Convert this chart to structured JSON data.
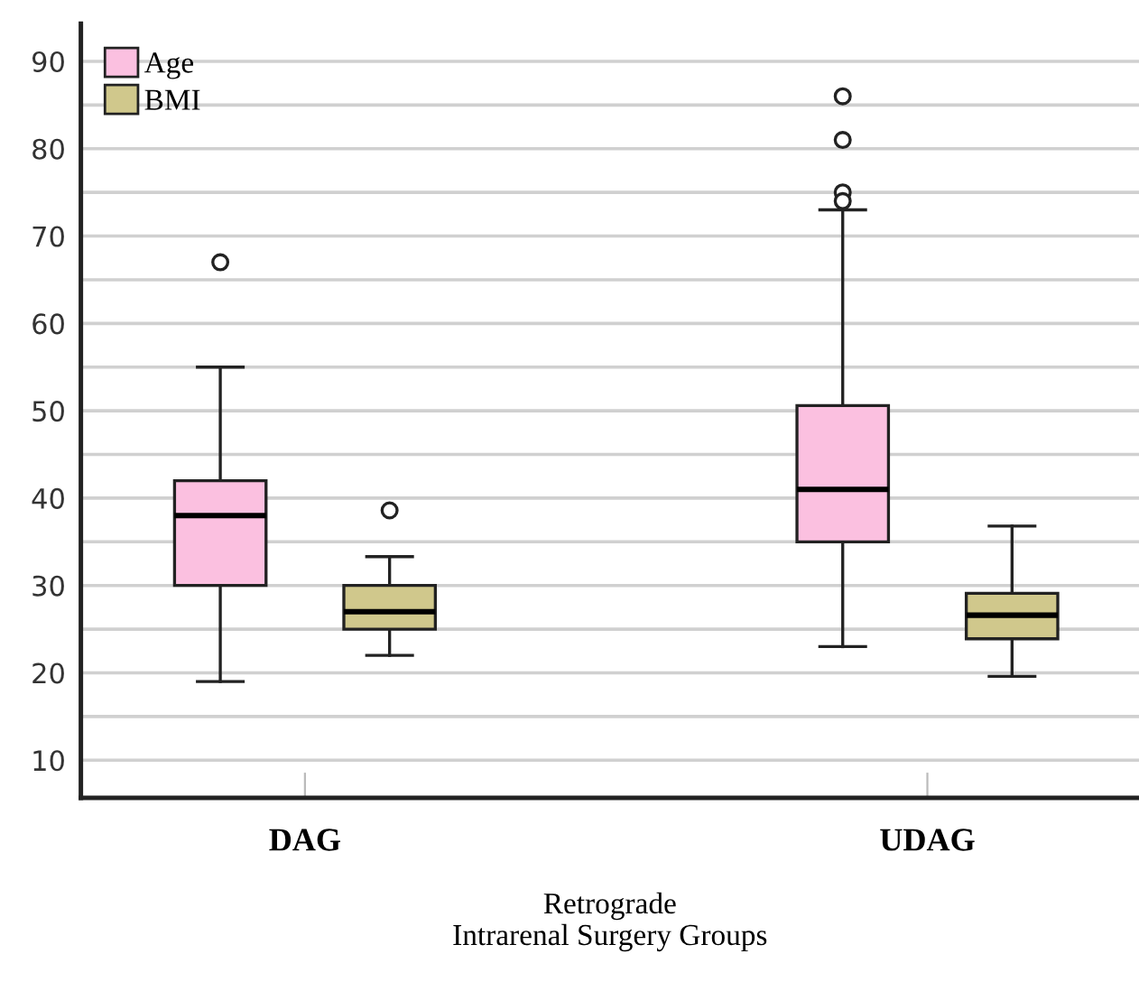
{
  "chart_data": {
    "type": "box",
    "xlabel": "Retrograde\nIntrarenal Surgery Groups",
    "categories": [
      "DAG",
      "UDAG"
    ],
    "series": [
      {
        "name": "Age",
        "color": "#fbc0e0",
        "boxes": [
          {
            "low": 19,
            "q1": 30,
            "median": 38,
            "q3": 42,
            "high": 55,
            "outliers": [
              67
            ]
          },
          {
            "low": 23,
            "q1": 35,
            "median": 41,
            "q3": 50.6,
            "high": 73,
            "outliers": [
              86,
              81,
              75,
              74
            ]
          }
        ]
      },
      {
        "name": "BMI",
        "color": "#d0c88c",
        "boxes": [
          {
            "low": 22,
            "q1": 25,
            "median": 27,
            "q3": 30,
            "high": 33.3,
            "outliers": [
              38.6
            ]
          },
          {
            "low": 19.6,
            "q1": 23.9,
            "median": 26.6,
            "q3": 29.1,
            "high": 36.8
          }
        ]
      }
    ],
    "ylim": [
      5.7,
      94.3
    ],
    "yticks": [
      10,
      {
        "value": 15,
        "label": null
      },
      20,
      {
        "value": 25,
        "label": null
      },
      30,
      {
        "value": 35,
        "label": null
      },
      40,
      {
        "value": 45,
        "label": null
      },
      50,
      {
        "value": 55,
        "label": null
      },
      60,
      {
        "value": 65,
        "label": null
      },
      70,
      {
        "value": 75,
        "label": null
      },
      80,
      {
        "value": 85,
        "label": null
      },
      90
    ],
    "grid": "y",
    "legend": "top left"
  }
}
